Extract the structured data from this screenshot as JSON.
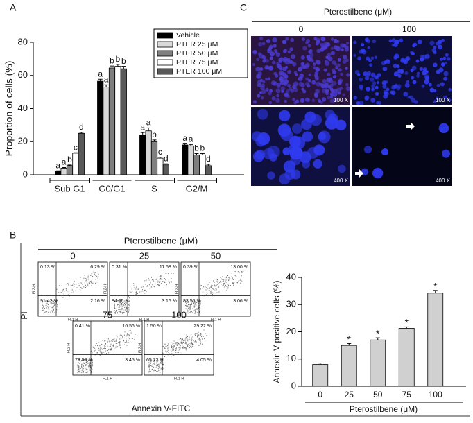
{
  "panel_labels": [
    "A",
    "B",
    "C"
  ],
  "chart_data": [
    {
      "type": "bar",
      "ylabel": "Proportion of cells (%)",
      "categories": [
        "Sub G1",
        "G0/G1",
        "S",
        "G2/M"
      ],
      "series": [
        {
          "name": "Vehicle",
          "color": "#000000",
          "values": [
            2,
            56.5,
            24,
            18
          ],
          "errors": [
            0.4,
            1.2,
            1.5,
            1
          ],
          "letters": [
            "a",
            "a",
            "a",
            "a"
          ]
        },
        {
          "name": "PTER 25 μM",
          "color": "#d9d9d9",
          "values": [
            4,
            53,
            26.5,
            17.5
          ],
          "errors": [
            0.4,
            1.3,
            1.8,
            0.8
          ],
          "letters": [
            "a",
            "a",
            "a",
            "a"
          ]
        },
        {
          "name": "PTER 50 μM",
          "color": "#7f7f7f",
          "values": [
            5.5,
            64.5,
            20,
            12
          ],
          "errors": [
            0.4,
            1.2,
            1,
            0.8
          ],
          "letters": [
            "b",
            "b",
            "b",
            "b"
          ]
        },
        {
          "name": "PTER 75 μM",
          "color": "#ffffff",
          "values": [
            13,
            65.5,
            10,
            12
          ],
          "errors": [
            0.3,
            1.2,
            0.6,
            0.8
          ],
          "letters": [
            "c",
            "b",
            "c",
            "b"
          ]
        },
        {
          "name": "PTER 100 μM",
          "color": "#595959",
          "values": [
            25,
            64,
            6,
            5.5
          ],
          "errors": [
            0.6,
            1.5,
            0.6,
            0.8
          ],
          "letters": [
            "d",
            "b",
            "d",
            "d"
          ]
        }
      ],
      "ylim": [
        0,
        80
      ],
      "yticks": [
        0,
        20,
        40,
        60,
        80
      ],
      "legend": "upper right"
    },
    {
      "type": "bar",
      "ylabel": "Annexin V positive cells (%)",
      "xlabel": "Pterostilbene (μM)",
      "categories": [
        "0",
        "25",
        "50",
        "75",
        "100"
      ],
      "values": [
        8,
        15,
        17,
        21.3,
        34.2
      ],
      "errors": [
        0.5,
        0.7,
        0.8,
        0.5,
        1
      ],
      "color": "#d0d0d0",
      "annotations": [
        null,
        "*",
        "*",
        "*",
        "*"
      ],
      "ylim": [
        0,
        40
      ],
      "yticks": [
        0,
        10,
        20,
        30,
        40
      ]
    }
  ],
  "flow_cytometry": {
    "title": "Pterostilbene (μM)",
    "y_label": "PI",
    "x_label": "Annexin V-FITC",
    "plot_y_axis": "FL2-H",
    "plot_x_axis": "FL1-H",
    "plots": [
      {
        "label": "0",
        "ul": "0.13 %",
        "ur": "6.29 %",
        "lr": "2.16 %",
        "ll": "91.42 %"
      },
      {
        "label": "25",
        "ul": "0.31 %",
        "ur": "11.58 %",
        "lr": "3.16 %",
        "ll": "84.95 %"
      },
      {
        "label": "50",
        "ul": "0.39 %",
        "ur": "13.00 %",
        "lr": "3.06 %",
        "ll": "83.55 %"
      },
      {
        "label": "75",
        "ul": "0.41 %",
        "ur": "16.56 %",
        "lr": "3.45 %",
        "ll": "79.58 %"
      },
      {
        "label": "100",
        "ul": "1.50 %",
        "ur": "29.22 %",
        "lr": "4.05 %",
        "ll": "65.23 %"
      }
    ]
  },
  "microscopy": {
    "title": "Pterostilbene (μM)",
    "columns": [
      "0",
      "100"
    ],
    "magnifications": [
      "100 X",
      "100 X",
      "400 X",
      "400 X"
    ]
  }
}
